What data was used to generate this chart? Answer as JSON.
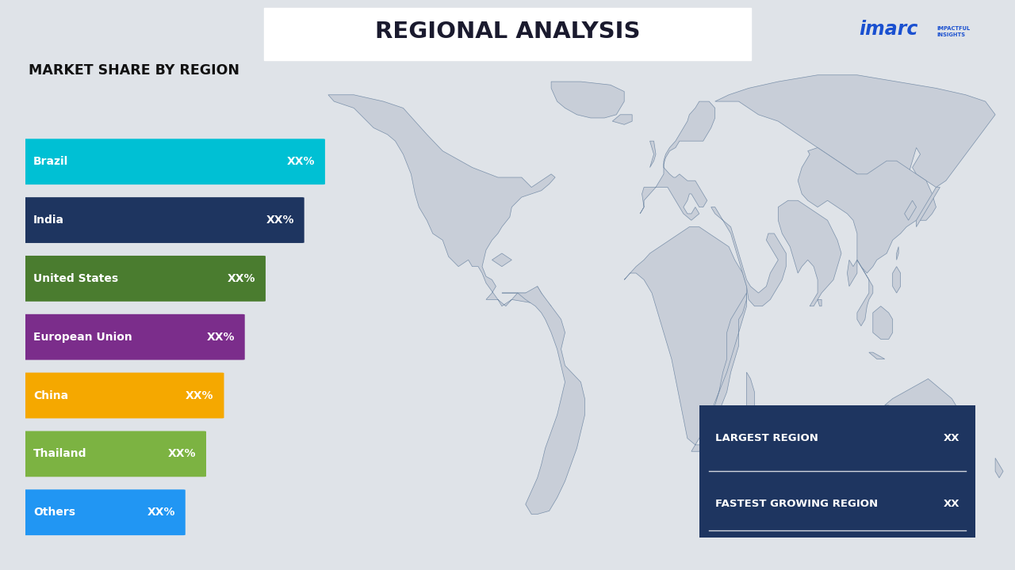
{
  "title": "REGIONAL ANALYSIS",
  "subtitle": "MARKET SHARE BY REGION",
  "background_color": "#dfe3e8",
  "title_bg_color": "#ffffff",
  "title_color": "#1a1a2e",
  "regions": [
    "Brazil",
    "India",
    "United States",
    "European Union",
    "China",
    "Thailand",
    "Others"
  ],
  "bar_colors": [
    "#00c0d4",
    "#1e3560",
    "#4a7c2f",
    "#7b2d8b",
    "#f5a800",
    "#7cb342",
    "#2196f3"
  ],
  "bar_values": [
    1.0,
    0.93,
    0.8,
    0.73,
    0.66,
    0.6,
    0.53
  ],
  "bar_label": "XX%",
  "info_box_color": "#1e3560",
  "info_box_text_color": "#ffffff",
  "largest_region_label": "LARGEST REGION",
  "fastest_region_label": "FASTEST GROWING REGION",
  "largest_region_value": "XX",
  "fastest_region_value": "XX",
  "continent_fill": "#c8ced8",
  "continent_edge": "#7a90aa",
  "imarc_blue": "#1a50d0"
}
